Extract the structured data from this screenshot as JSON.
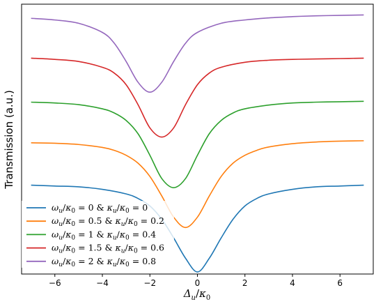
{
  "chart_data": {
    "type": "line",
    "title": "",
    "xlabel": "Δ_u/κ_0",
    "ylabel": "Transmission (a.u.)",
    "xlim": [
      -7.4,
      7.4
    ],
    "ylim": [
      0,
      6.5
    ],
    "xticks": [
      -6,
      -4,
      -2,
      0,
      2,
      4,
      6
    ],
    "xtick_labels": [
      "−6",
      "−4",
      "−2",
      "0",
      "2",
      "4",
      "6"
    ],
    "yticks_visible": false,
    "grid": false,
    "legend_position": "bottom-left",
    "series": [
      {
        "name": "ω_u/κ_0 = 0 & κ_u/κ_0 = 0",
        "color": "#1f77b4",
        "x": [
          -7,
          -6,
          -5,
          -4,
          -3,
          -2.5,
          -2,
          -1.5,
          -1,
          -0.5,
          0,
          0.5,
          1,
          1.5,
          2,
          2.5,
          3,
          4,
          5,
          6,
          7
        ],
        "y": [
          2.14,
          2.12,
          2.1,
          2.04,
          1.93,
          1.82,
          1.64,
          1.32,
          0.87,
          0.38,
          0.05,
          0.38,
          0.87,
          1.32,
          1.64,
          1.82,
          1.93,
          2.04,
          2.1,
          2.12,
          2.14
        ]
      },
      {
        "name": "ω_u/κ_0 = 0.5 & κ_u/κ_0 = 0.2",
        "color": "#ff7f0e",
        "x": [
          -7,
          -6,
          -5,
          -4,
          -3.5,
          -3,
          -2.5,
          -2,
          -1.5,
          -1,
          -0.5,
          0,
          0.5,
          1,
          1.5,
          2,
          2.5,
          3,
          4,
          5,
          6,
          7
        ],
        "y": [
          3.16,
          3.15,
          3.12,
          3.05,
          2.98,
          2.86,
          2.67,
          2.35,
          1.88,
          1.37,
          1.12,
          1.37,
          1.88,
          2.35,
          2.67,
          2.86,
          2.98,
          3.06,
          3.14,
          3.18,
          3.2,
          3.21
        ]
      },
      {
        "name": "ω_u/κ_0 = 1 & κ_u/κ_0 = 0.4",
        "color": "#2ca02c",
        "x": [
          -7,
          -6,
          -5,
          -4,
          -3.5,
          -3,
          -2.5,
          -2,
          -1.5,
          -1,
          -0.5,
          0,
          0.5,
          1,
          1.5,
          2,
          3,
          4,
          5,
          6,
          7
        ],
        "y": [
          4.14,
          4.12,
          4.08,
          3.98,
          3.88,
          3.7,
          3.38,
          2.86,
          2.3,
          2.08,
          2.3,
          2.86,
          3.38,
          3.7,
          3.88,
          3.98,
          4.07,
          4.12,
          4.14,
          4.15,
          4.16
        ]
      },
      {
        "name": "ω_u/κ_0 = 1.5 & κ_u/κ_0 = 0.6",
        "color": "#d62728",
        "x": [
          -7,
          -6,
          -5,
          -4,
          -3.5,
          -3,
          -2.5,
          -2,
          -1.5,
          -1,
          -0.5,
          0,
          0.5,
          1,
          2,
          3,
          4,
          5,
          6,
          7
        ],
        "y": [
          5.2,
          5.17,
          5.12,
          4.98,
          4.84,
          4.56,
          4.08,
          3.52,
          3.3,
          3.52,
          4.08,
          4.56,
          4.84,
          4.98,
          5.1,
          5.15,
          5.17,
          5.18,
          5.19,
          5.2
        ]
      },
      {
        "name": "ω_u/κ_0 = 2 & κ_u/κ_0 = 0.8",
        "color": "#9467bd",
        "x": [
          -7,
          -6,
          -5,
          -4,
          -3.5,
          -3,
          -2.5,
          -2,
          -1.5,
          -1,
          -0.5,
          0,
          1,
          2,
          3,
          4,
          5,
          6,
          7
        ],
        "y": [
          6.16,
          6.12,
          6.04,
          5.82,
          5.56,
          5.12,
          4.62,
          4.38,
          4.62,
          5.12,
          5.56,
          5.82,
          6.04,
          6.12,
          6.17,
          6.2,
          6.22,
          6.23,
          6.24
        ]
      }
    ]
  }
}
